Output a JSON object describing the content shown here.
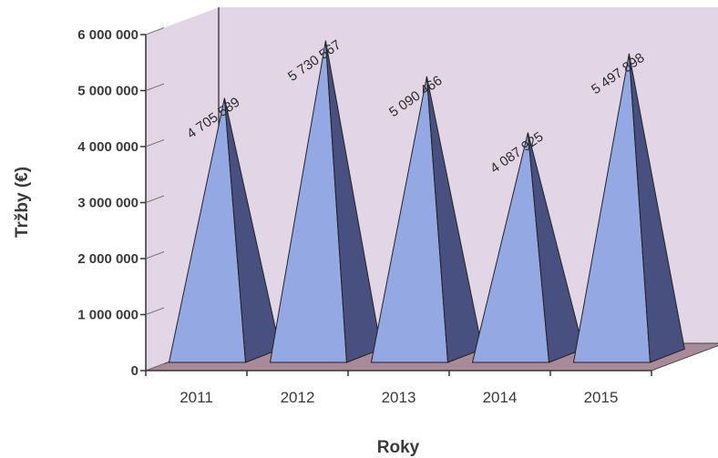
{
  "chart_data": {
    "type": "bar",
    "style": "3d-pyramid",
    "categories": [
      "2011",
      "2012",
      "2013",
      "2014",
      "2015"
    ],
    "values": [
      4705589,
      5730567,
      5090466,
      4087925,
      5497898
    ],
    "data_labels": [
      "4 705 589",
      "5 730 567",
      "5 090 466",
      "4 087 925",
      "5 497 898"
    ],
    "xlabel": "Roky",
    "ylabel": "Tržby (€)",
    "ylim": [
      0,
      6000000
    ],
    "yticks": [
      0,
      1000000,
      2000000,
      3000000,
      4000000,
      5000000,
      6000000
    ],
    "ytick_labels": [
      "0",
      "1 000 000",
      "2 000 000",
      "3 000 000",
      "4 000 000",
      "5 000 000",
      "6 000 000"
    ],
    "grid": false,
    "legend": "none",
    "colors": {
      "front_face": "#94a9e4",
      "side_face": "#48507f",
      "back_wall": "#e2d6e6",
      "floor": "#a88a99",
      "axis": "#333333"
    }
  }
}
